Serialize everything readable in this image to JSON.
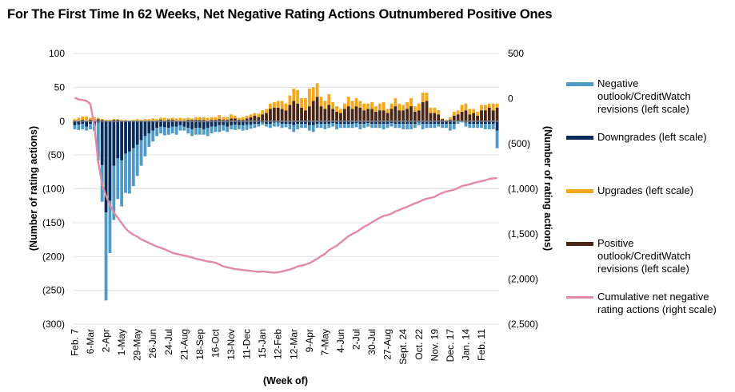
{
  "title": "For The First Time In 62 Weeks, Net Negative Rating Actions Outnumbered Positive Ones",
  "chart_data": {
    "type": "bar",
    "subtype": "stacked bar with line overlay (dual axis)",
    "title": "For The First Time In 62 Weeks, Net Negative Rating Actions Outnumbered Positive Ones",
    "xlabel": "(Week of)",
    "ylabel_left": "(Number of rating actions)",
    "ylabel_right": "(Number of rating actions)",
    "ylim_left": [
      -300,
      100
    ],
    "yticks_left": [
      100,
      50,
      0,
      -50,
      -100,
      -150,
      -200,
      -250,
      -300
    ],
    "yticklabels_left": [
      "100",
      "50",
      "0",
      "(50)",
      "(100)",
      "(150)",
      "(200)",
      "(250)",
      "(300)"
    ],
    "ylim_right": [
      -2500,
      500
    ],
    "yticks_right": [
      500,
      0,
      -500,
      -1000,
      -1500,
      -2000,
      -2500
    ],
    "yticklabels_right": [
      "500",
      "0",
      "(500)",
      "(1,000)",
      "(1,500)",
      "(2,000)",
      "(2,500)"
    ],
    "grid": true,
    "legend_position": "right",
    "xticklabels": [
      "Feb. 7",
      "6-Mar",
      "2-Apr",
      "1-May",
      "29-May",
      "26-Jun",
      "24-Jul",
      "21-Aug",
      "18-Sep",
      "16-Oct",
      "13-Nov",
      "11-Dec",
      "15-Jan",
      "12-Feb",
      "12-Mar",
      "9-Apr",
      "7-May",
      "4-Jun",
      "2-Jul",
      "30-Jul",
      "27-Aug",
      "Sept. 24",
      "Oct. 22",
      "Nov. 19",
      "Dec. 17",
      "Jan. 14",
      "Feb. 11"
    ],
    "xtick_every_weeks": 4,
    "colors": {
      "negative_outlook": "#4f9bc6",
      "downgrades": "#0b2d5b",
      "upgrades": "#f5a81c",
      "positive_outlook": "#4a2616",
      "cumulative": "#e08aa8",
      "grid": "#e3e3e3",
      "zero_line": "#888888"
    },
    "series": [
      {
        "name": "Negative outlook/CreditWatch revisions (left scale)",
        "axis": "left",
        "values": [
          -6,
          -8,
          -8,
          -6,
          -8,
          -9,
          -56,
          -54,
          -130,
          -77,
          -80,
          -60,
          -68,
          -58,
          -62,
          -56,
          -46,
          -38,
          -30,
          -20,
          -16,
          -12,
          -10,
          -12,
          -10,
          -10,
          -12,
          -8,
          -6,
          -8,
          -10,
          -10,
          -10,
          -8,
          -12,
          -10,
          -8,
          -10,
          -8,
          -8,
          -6,
          -8,
          -6,
          -8,
          -8,
          -6,
          -6,
          -4,
          -3,
          -4,
          -6,
          -6,
          -6,
          -6,
          -5,
          -8,
          -10,
          -8,
          -6,
          -6,
          -8,
          -10,
          -6,
          -6,
          -8,
          -6,
          -5,
          -8,
          -6,
          -6,
          -6,
          -6,
          -6,
          -8,
          -6,
          -5,
          -6,
          -6,
          -6,
          -8,
          -6,
          -5,
          -6,
          -6,
          -8,
          -8,
          -8,
          -6,
          -4,
          -8,
          -6,
          -6,
          -6,
          -4,
          -6,
          -6,
          -10,
          -8,
          -3,
          -1,
          -6,
          -6,
          -6,
          -6,
          -6,
          -8,
          -8,
          -8,
          -26
        ],
        "note": "values are the negative-outlook segment below the downgrades segment"
      },
      {
        "name": "Downgrades (left scale)",
        "axis": "left",
        "values": [
          -6,
          -5,
          -4,
          -8,
          -4,
          -5,
          -2,
          -65,
          -135,
          -118,
          -66,
          -55,
          -58,
          -48,
          -45,
          -40,
          -35,
          -28,
          -22,
          -18,
          -14,
          -10,
          -8,
          -9,
          -10,
          -8,
          -8,
          -6,
          -8,
          -10,
          -12,
          -10,
          -10,
          -12,
          -10,
          -8,
          -8,
          -6,
          -6,
          -8,
          -6,
          -5,
          -6,
          -6,
          -5,
          -5,
          -4,
          -4,
          -2,
          -4,
          -4,
          -2,
          -2,
          -4,
          -4,
          -4,
          -6,
          -4,
          -4,
          -4,
          -6,
          -6,
          -4,
          -4,
          -4,
          -4,
          -3,
          -4,
          -4,
          -4,
          -4,
          -4,
          -3,
          -4,
          -4,
          -3,
          -4,
          -4,
          -4,
          -4,
          -4,
          -3,
          -4,
          -4,
          -4,
          -4,
          -4,
          -4,
          -2,
          -4,
          -4,
          -4,
          -4,
          -4,
          -4,
          -4,
          -4,
          -4,
          -1,
          -1,
          -2,
          -4,
          -4,
          -4,
          -4,
          -4,
          -4,
          -4,
          -14
        ]
      },
      {
        "name": "Upgrades (left scale)",
        "axis": "left",
        "values": [
          2,
          4,
          5,
          6,
          3,
          5,
          2,
          1,
          1,
          1,
          1,
          1,
          1,
          1,
          1,
          1,
          2,
          1,
          2,
          2,
          3,
          2,
          3,
          4,
          2,
          3,
          3,
          4,
          3,
          3,
          2,
          4,
          4,
          4,
          4,
          4,
          4,
          6,
          4,
          4,
          6,
          4,
          3,
          4,
          4,
          4,
          4,
          5,
          6,
          6,
          8,
          8,
          10,
          12,
          10,
          14,
          18,
          20,
          14,
          18,
          26,
          20,
          20,
          14,
          12,
          16,
          10,
          8,
          6,
          8,
          14,
          12,
          12,
          10,
          10,
          8,
          10,
          8,
          10,
          12,
          6,
          8,
          12,
          10,
          8,
          10,
          12,
          8,
          10,
          14,
          12,
          8,
          8,
          6,
          1,
          1,
          4,
          6,
          6,
          10,
          10,
          8,
          6,
          6,
          8,
          8,
          6,
          10,
          6
        ],
        "note": "stacked above positive outlook/CreditWatch revisions"
      },
      {
        "name": "Positive outlook/CreditWatch revisions (left scale)",
        "axis": "left",
        "values": [
          1,
          1,
          2,
          1,
          2,
          1,
          3,
          2,
          1,
          1,
          2,
          2,
          1,
          1,
          0,
          1,
          1,
          1,
          1,
          1,
          1,
          1,
          2,
          1,
          2,
          2,
          1,
          1,
          1,
          2,
          2,
          2,
          2,
          2,
          1,
          2,
          2,
          3,
          2,
          2,
          4,
          4,
          2,
          2,
          4,
          6,
          8,
          6,
          10,
          12,
          18,
          20,
          20,
          18,
          16,
          24,
          30,
          26,
          20,
          16,
          22,
          30,
          36,
          22,
          18,
          24,
          18,
          14,
          12,
          18,
          22,
          18,
          22,
          20,
          16,
          18,
          18,
          14,
          16,
          16,
          12,
          18,
          22,
          16,
          16,
          18,
          22,
          14,
          16,
          28,
          30,
          12,
          12,
          10,
          3,
          1,
          2,
          8,
          10,
          14,
          16,
          10,
          12,
          8,
          16,
          16,
          20,
          16,
          20
        ]
      },
      {
        "name": "Cumulative net negative rating actions (right scale)",
        "axis": "right",
        "type": "line",
        "values": [
          10,
          -10,
          -15,
          -25,
          -60,
          -300,
          -700,
          -950,
          -1080,
          -1180,
          -1260,
          -1320,
          -1380,
          -1440,
          -1480,
          -1510,
          -1530,
          -1560,
          -1580,
          -1600,
          -1620,
          -1640,
          -1655,
          -1670,
          -1690,
          -1710,
          -1720,
          -1730,
          -1740,
          -1750,
          -1760,
          -1775,
          -1785,
          -1795,
          -1805,
          -1810,
          -1820,
          -1840,
          -1860,
          -1870,
          -1880,
          -1890,
          -1895,
          -1900,
          -1905,
          -1910,
          -1915,
          -1920,
          -1915,
          -1922,
          -1925,
          -1930,
          -1925,
          -1915,
          -1905,
          -1895,
          -1880,
          -1860,
          -1850,
          -1840,
          -1825,
          -1800,
          -1775,
          -1745,
          -1720,
          -1680,
          -1655,
          -1630,
          -1595,
          -1560,
          -1525,
          -1500,
          -1480,
          -1450,
          -1420,
          -1400,
          -1370,
          -1345,
          -1320,
          -1300,
          -1290,
          -1275,
          -1250,
          -1235,
          -1215,
          -1200,
          -1180,
          -1160,
          -1145,
          -1125,
          -1110,
          -1100,
          -1090,
          -1065,
          -1045,
          -1030,
          -1020,
          -1010,
          -990,
          -970,
          -960,
          -950,
          -935,
          -925,
          -915,
          -905,
          -890,
          -885,
          -880
        ]
      }
    ]
  },
  "legend": [
    {
      "label": "Negative outlook/CreditWatch revisions (left scale)",
      "color": "#4f9bc6",
      "kind": "bar"
    },
    {
      "label": "Downgrades (left scale)",
      "color": "#0b2d5b",
      "kind": "bar"
    },
    {
      "label": "Upgrades (left scale)",
      "color": "#f5a81c",
      "kind": "bar"
    },
    {
      "label": "Positive outlook/CreditWatch revisions (left scale)",
      "color": "#4a2616",
      "kind": "bar"
    },
    {
      "label": "Cumulative net negative rating actions (right scale)",
      "color": "#e08aa8",
      "kind": "line"
    }
  ]
}
